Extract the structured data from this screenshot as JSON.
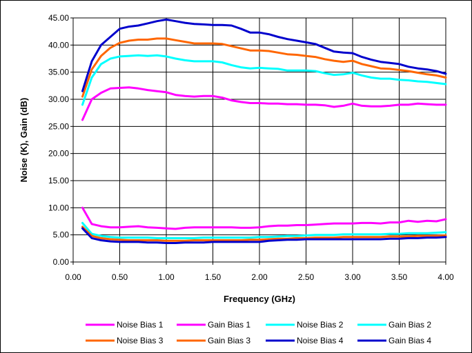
{
  "chart_data": {
    "type": "line",
    "title": "",
    "xlabel": "Frequency (GHz)",
    "ylabel": "Noise (K), Gain (dB)",
    "xlim": [
      0,
      4
    ],
    "ylim": [
      0,
      45
    ],
    "x_ticks": [
      "0.00",
      "0.50",
      "1.00",
      "1.50",
      "2.00",
      "2.50",
      "3.00",
      "3.50",
      "4.00"
    ],
    "x_tick_values": [
      0,
      0.5,
      1,
      1.5,
      2,
      2.5,
      3,
      3.5,
      4
    ],
    "y_ticks": [
      "0.00",
      "5.00",
      "10.00",
      "15.00",
      "20.00",
      "25.00",
      "30.00",
      "35.00",
      "40.00",
      "45.00"
    ],
    "y_tick_values": [
      0,
      5,
      10,
      15,
      20,
      25,
      30,
      35,
      40,
      45
    ],
    "grid": true,
    "legend_position": "bottom",
    "x": [
      0.1,
      0.2,
      0.3,
      0.4,
      0.5,
      0.6,
      0.7,
      0.8,
      0.9,
      1.0,
      1.1,
      1.2,
      1.3,
      1.4,
      1.5,
      1.6,
      1.7,
      1.8,
      1.9,
      2.0,
      2.1,
      2.2,
      2.3,
      2.4,
      2.5,
      2.6,
      2.7,
      2.8,
      2.9,
      3.0,
      3.1,
      3.2,
      3.3,
      3.4,
      3.5,
      3.6,
      3.7,
      3.8,
      3.9,
      4.0
    ],
    "series": [
      {
        "name": "Noise Bias 1",
        "color": "#ff00ff",
        "values": [
          10.0,
          7.0,
          6.6,
          6.4,
          6.4,
          6.5,
          6.6,
          6.4,
          6.3,
          6.2,
          6.1,
          6.3,
          6.4,
          6.4,
          6.4,
          6.4,
          6.4,
          6.3,
          6.3,
          6.4,
          6.6,
          6.7,
          6.7,
          6.8,
          6.8,
          6.9,
          7.0,
          7.1,
          7.1,
          7.1,
          7.2,
          7.2,
          7.1,
          7.3,
          7.3,
          7.6,
          7.4,
          7.6,
          7.5,
          7.9
        ]
      },
      {
        "name": "Gain Bias 1",
        "color": "#ff00ff",
        "values": [
          26.2,
          30.0,
          31.2,
          32.0,
          32.1,
          32.2,
          32.0,
          31.7,
          31.5,
          31.3,
          30.8,
          30.6,
          30.5,
          30.6,
          30.6,
          30.3,
          29.8,
          29.5,
          29.3,
          29.3,
          29.2,
          29.2,
          29.1,
          29.1,
          29.0,
          29.0,
          28.9,
          28.6,
          28.8,
          29.2,
          28.8,
          28.7,
          28.7,
          28.8,
          29.0,
          29.0,
          29.2,
          29.1,
          29.0,
          29.0
        ]
      },
      {
        "name": "Noise Bias 2",
        "color": "#00ffff",
        "values": [
          7.2,
          5.2,
          4.8,
          4.6,
          4.5,
          4.5,
          4.5,
          4.5,
          4.4,
          4.4,
          4.4,
          4.4,
          4.4,
          4.5,
          4.5,
          4.5,
          4.5,
          4.5,
          4.5,
          4.6,
          4.6,
          4.7,
          4.8,
          4.8,
          4.9,
          5.0,
          5.0,
          5.0,
          5.1,
          5.1,
          5.1,
          5.1,
          5.1,
          5.2,
          5.2,
          5.3,
          5.3,
          5.3,
          5.4,
          5.5
        ]
      },
      {
        "name": "Gain Bias 2",
        "color": "#00ffff",
        "values": [
          29.0,
          34.0,
          36.5,
          37.5,
          37.9,
          38.0,
          38.1,
          38.0,
          38.1,
          37.9,
          37.5,
          37.2,
          37.0,
          37.0,
          37.0,
          36.8,
          36.3,
          35.9,
          35.7,
          35.8,
          35.7,
          35.6,
          35.3,
          35.3,
          35.3,
          35.2,
          34.8,
          34.5,
          34.6,
          34.9,
          34.4,
          34.0,
          33.8,
          33.8,
          33.6,
          33.5,
          33.3,
          33.2,
          33.0,
          32.8
        ]
      },
      {
        "name": "Noise Bias 3",
        "color": "#ff6600",
        "values": [
          6.5,
          4.8,
          4.4,
          4.2,
          4.1,
          4.0,
          4.0,
          4.0,
          4.0,
          3.9,
          3.9,
          3.9,
          4.0,
          4.0,
          4.0,
          4.0,
          4.0,
          4.0,
          4.1,
          4.1,
          4.2,
          4.3,
          4.3,
          4.4,
          4.4,
          4.5,
          4.5,
          4.5,
          4.6,
          4.6,
          4.6,
          4.6,
          4.6,
          4.7,
          4.7,
          4.7,
          4.8,
          4.8,
          4.8,
          4.9
        ]
      },
      {
        "name": "Gain Bias 3",
        "color": "#ff6600",
        "values": [
          30.5,
          35.5,
          38.0,
          39.5,
          40.4,
          40.8,
          41.0,
          41.0,
          41.2,
          41.2,
          40.9,
          40.6,
          40.3,
          40.3,
          40.3,
          40.2,
          39.8,
          39.4,
          39.0,
          39.0,
          38.9,
          38.6,
          38.3,
          38.2,
          38.0,
          37.8,
          37.4,
          37.1,
          36.9,
          37.1,
          36.5,
          36.1,
          35.7,
          35.6,
          35.4,
          35.2,
          34.9,
          34.6,
          34.4,
          34.0
        ]
      },
      {
        "name": "Noise Bias 4",
        "color": "#0000cc",
        "values": [
          6.2,
          4.4,
          4.0,
          3.8,
          3.7,
          3.7,
          3.7,
          3.6,
          3.6,
          3.5,
          3.5,
          3.6,
          3.6,
          3.6,
          3.7,
          3.7,
          3.7,
          3.7,
          3.7,
          3.7,
          3.9,
          4.0,
          4.1,
          4.1,
          4.2,
          4.2,
          4.2,
          4.2,
          4.2,
          4.2,
          4.2,
          4.2,
          4.2,
          4.3,
          4.3,
          4.4,
          4.4,
          4.5,
          4.5,
          4.6
        ]
      },
      {
        "name": "Gain Bias 4",
        "color": "#0000cc",
        "values": [
          31.5,
          37.0,
          40.0,
          41.5,
          43.0,
          43.4,
          43.6,
          44.0,
          44.4,
          44.7,
          44.4,
          44.1,
          43.9,
          43.8,
          43.7,
          43.7,
          43.6,
          43.0,
          42.3,
          42.3,
          42.0,
          41.5,
          41.1,
          40.8,
          40.5,
          40.2,
          39.5,
          38.8,
          38.6,
          38.5,
          37.8,
          37.3,
          36.9,
          36.7,
          36.5,
          36.0,
          35.7,
          35.5,
          35.2,
          34.7
        ]
      }
    ]
  }
}
